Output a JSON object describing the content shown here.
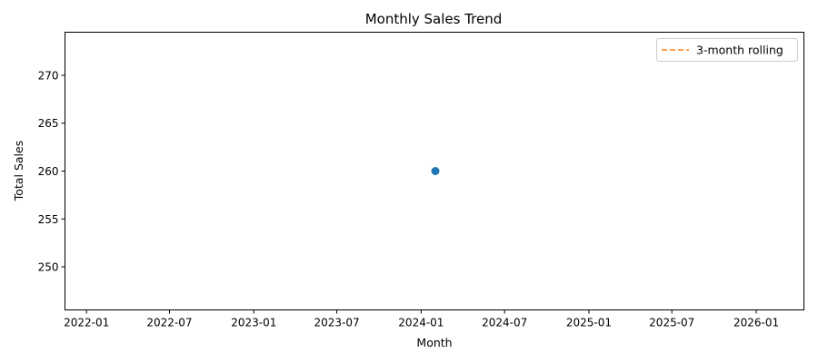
{
  "chart_data": {
    "type": "line",
    "title": "Monthly Sales Trend",
    "xlabel": "Month",
    "ylabel": "Total Sales",
    "x_axis": {
      "kind": "date",
      "range": [
        "2021-11-15",
        "2026-04-15"
      ],
      "ticks": [
        "2022-01",
        "2022-07",
        "2023-01",
        "2023-07",
        "2024-01",
        "2024-07",
        "2025-01",
        "2025-07",
        "2026-01"
      ]
    },
    "y_axis": {
      "range": [
        245.5,
        274.5
      ],
      "ticks": [
        250,
        255,
        260,
        265,
        270
      ]
    },
    "series": [
      {
        "role": "monthly total",
        "color": "#1f77b4",
        "marker": "circle",
        "points": [
          {
            "x": "2024-02-01",
            "y": 260
          }
        ]
      },
      {
        "name": "3-month rolling",
        "color": "#ff7f0e",
        "line_style": "dashed",
        "points": []
      }
    ],
    "legend": {
      "position": "top-right"
    },
    "grid": false
  }
}
